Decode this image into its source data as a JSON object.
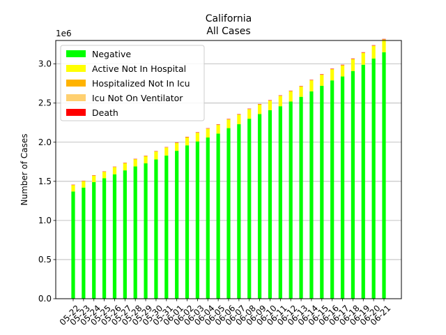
{
  "chart_data": {
    "type": "bar",
    "stacked": true,
    "title": "California",
    "subtitle": "All Cases",
    "ylabel": "Number of Cases",
    "xlabel": "",
    "y_offset_label": "1e6",
    "ylim": [
      0,
      3.3
    ],
    "yticks": [
      "0.0",
      "0.5",
      "1.0",
      "1.5",
      "2.0",
      "2.5",
      "3.0"
    ],
    "grid": "horizontal",
    "legend_position": "upper-left",
    "categories": [
      "05-22",
      "05-23",
      "05-24",
      "05-25",
      "05-26",
      "05-27",
      "05-28",
      "05-29",
      "05-30",
      "05-31",
      "06-01",
      "06-02",
      "06-03",
      "06-04",
      "06-05",
      "06-06",
      "06-07",
      "06-08",
      "06-09",
      "06-10",
      "06-11",
      "06-12",
      "06-13",
      "06-14",
      "06-15",
      "06-16",
      "06-17",
      "06-18",
      "06-19",
      "06-20",
      "06-21"
    ],
    "series": [
      {
        "name": "Negative",
        "color": "#00ff00",
        "values": [
          1.37,
          1.42,
          1.49,
          1.54,
          1.59,
          1.64,
          1.69,
          1.73,
          1.78,
          1.83,
          1.89,
          1.96,
          2.01,
          2.06,
          2.11,
          2.18,
          2.23,
          2.3,
          2.36,
          2.41,
          2.46,
          2.52,
          2.58,
          2.65,
          2.72,
          2.79,
          2.84,
          2.91,
          2.99,
          3.07,
          3.15
        ]
      },
      {
        "name": "Active Not In Hospital",
        "color": "#ffff00",
        "values": [
          0.08,
          0.08,
          0.08,
          0.08,
          0.09,
          0.09,
          0.09,
          0.09,
          0.1,
          0.1,
          0.1,
          0.1,
          0.11,
          0.11,
          0.11,
          0.11,
          0.12,
          0.12,
          0.12,
          0.12,
          0.13,
          0.13,
          0.13,
          0.14,
          0.14,
          0.14,
          0.14,
          0.15,
          0.15,
          0.16,
          0.16
        ]
      },
      {
        "name": "Hospitalized Not In Icu",
        "color": "#ffb300",
        "values": [
          0.004,
          0.004,
          0.004,
          0.004,
          0.004,
          0.004,
          0.004,
          0.004,
          0.004,
          0.004,
          0.004,
          0.004,
          0.004,
          0.004,
          0.004,
          0.004,
          0.004,
          0.004,
          0.004,
          0.004,
          0.004,
          0.004,
          0.004,
          0.004,
          0.004,
          0.004,
          0.004,
          0.004,
          0.004,
          0.004,
          0.004
        ]
      },
      {
        "name": "Icu Not On Ventilator",
        "color": "#ffd070",
        "values": [
          0.001,
          0.001,
          0.001,
          0.001,
          0.001,
          0.001,
          0.001,
          0.001,
          0.001,
          0.001,
          0.001,
          0.001,
          0.001,
          0.001,
          0.001,
          0.001,
          0.001,
          0.001,
          0.001,
          0.001,
          0.001,
          0.001,
          0.001,
          0.001,
          0.001,
          0.001,
          0.001,
          0.001,
          0.001,
          0.001,
          0.001
        ]
      },
      {
        "name": "Death",
        "color": "#ff0000",
        "values": [
          0.003,
          0.003,
          0.003,
          0.003,
          0.003,
          0.003,
          0.003,
          0.003,
          0.003,
          0.003,
          0.004,
          0.004,
          0.004,
          0.004,
          0.004,
          0.004,
          0.004,
          0.004,
          0.004,
          0.004,
          0.004,
          0.004,
          0.004,
          0.004,
          0.005,
          0.005,
          0.005,
          0.005,
          0.005,
          0.005,
          0.005
        ]
      }
    ]
  }
}
